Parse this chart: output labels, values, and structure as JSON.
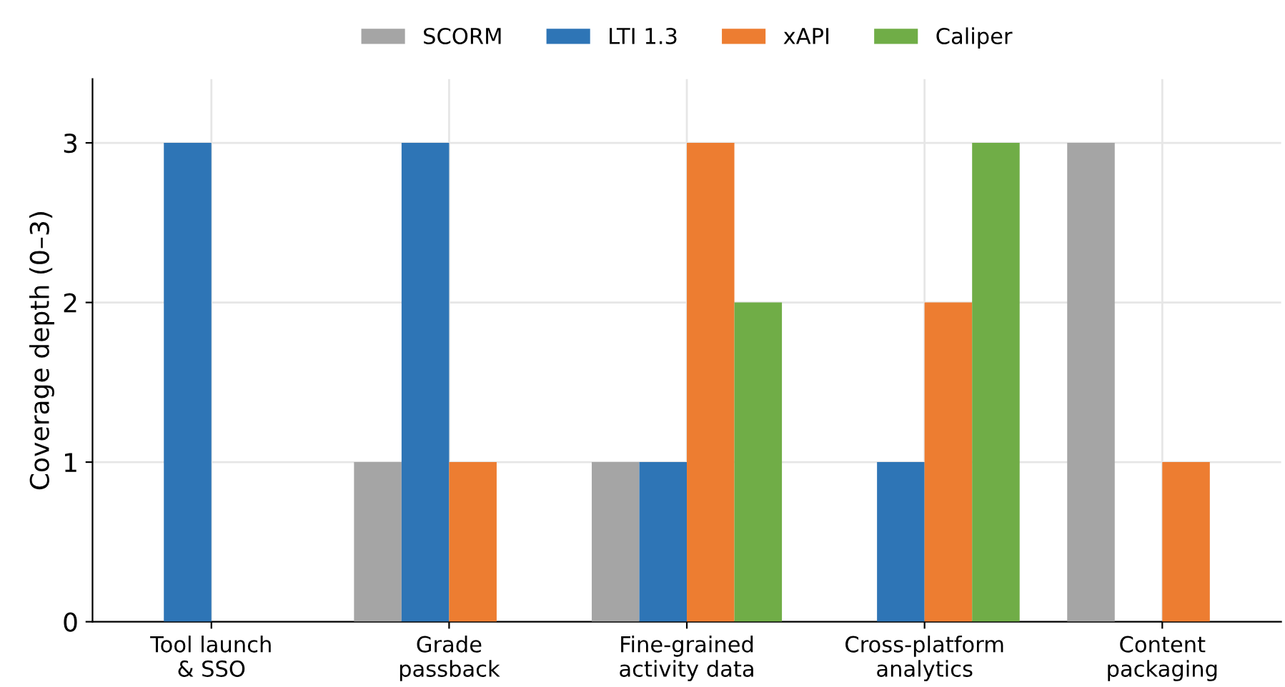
{
  "chart_data": {
    "type": "bar",
    "ylabel": "Coverage depth (0–3)",
    "categories": [
      "Tool launch\n& SSO",
      "Grade\npassback",
      "Fine-grained\nactivity data",
      "Cross-platform\nanalytics",
      "Content\npackaging"
    ],
    "series": [
      {
        "name": "SCORM",
        "color": "#a5a5a5",
        "values": [
          0,
          1,
          1,
          0,
          3
        ]
      },
      {
        "name": "LTI 1.3",
        "color": "#2e75b6",
        "values": [
          3,
          3,
          1,
          1,
          0
        ]
      },
      {
        "name": "xAPI",
        "color": "#ed7d31",
        "values": [
          0,
          1,
          3,
          2,
          1
        ]
      },
      {
        "name": "Caliper",
        "color": "#70ad47",
        "values": [
          0,
          0,
          2,
          3,
          0
        ]
      }
    ],
    "ylim": [
      0,
      3.4
    ],
    "yticks": [
      0,
      1,
      2,
      3
    ],
    "grid": true,
    "legend": "top"
  }
}
